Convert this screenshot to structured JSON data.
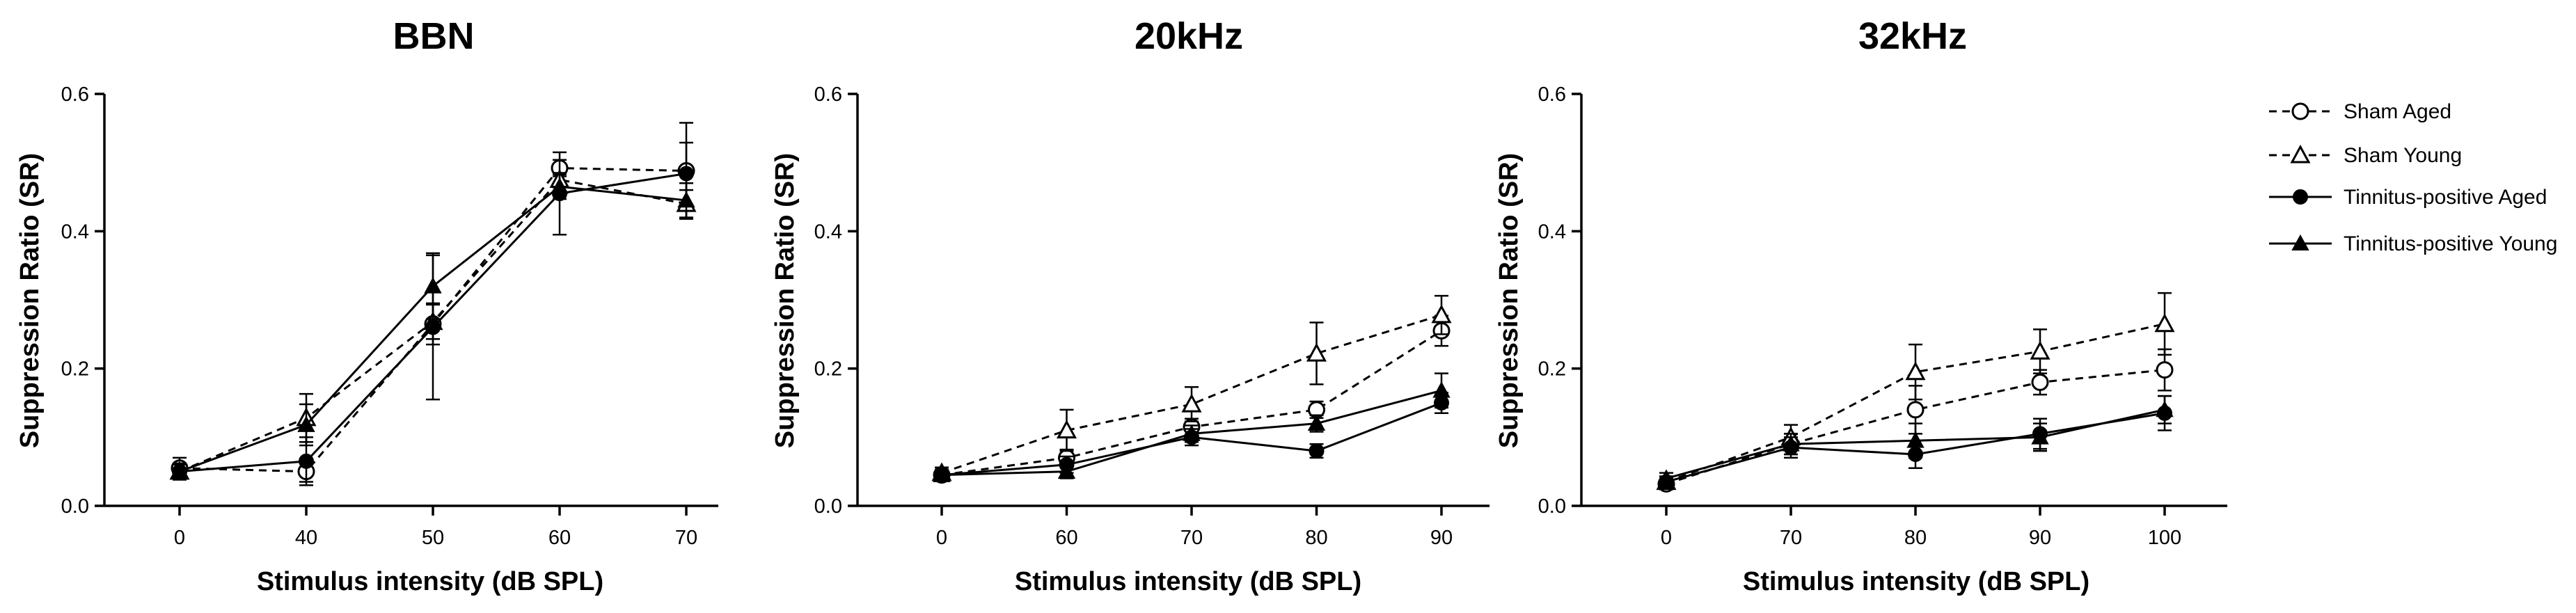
{
  "chart_data": [
    {
      "type": "line",
      "title": "BBN",
      "xlabel": "Stimulus intensity (dB SPL)",
      "ylabel": "Suppression Ratio (SR)",
      "ylim": [
        0,
        0.6
      ],
      "yticks": [
        "0.0",
        "0.2",
        "0.4",
        "0.6"
      ],
      "categories": [
        "0",
        "40",
        "50",
        "60",
        "70"
      ],
      "series": [
        {
          "name": "Sham Aged",
          "values": [
            0.055,
            0.05,
            0.265,
            0.492,
            0.488
          ],
          "errors": [
            0.015,
            0.015,
            0.03,
            0.012,
            0.07
          ]
        },
        {
          "name": "Sham Young",
          "values": [
            0.05,
            0.128,
            0.268,
            0.475,
            0.44
          ],
          "errors": [
            0.01,
            0.035,
            0.025,
            0.01,
            0.02
          ]
        },
        {
          "name": "Tinnitus-positive Aged",
          "values": [
            0.05,
            0.065,
            0.26,
            0.455,
            0.484
          ],
          "errors": [
            0.012,
            0.035,
            0.105,
            0.06,
            0.045
          ]
        },
        {
          "name": "Tinnitus-positive Young",
          "values": [
            0.05,
            0.118,
            0.32,
            0.465,
            0.445
          ],
          "errors": [
            0.01,
            0.03,
            0.048,
            0.018,
            0.025
          ]
        }
      ]
    },
    {
      "type": "line",
      "title": "20kHz",
      "xlabel": "Stimulus intensity (dB SPL)",
      "ylabel": "Suppression Ratio (SR)",
      "ylim": [
        0,
        0.6
      ],
      "yticks": [
        "0.0",
        "0.2",
        "0.4",
        "0.6"
      ],
      "categories": [
        "0",
        "60",
        "70",
        "80",
        "90"
      ],
      "series": [
        {
          "name": "Sham Aged",
          "values": [
            0.045,
            0.07,
            0.115,
            0.14,
            0.255
          ],
          "errors": [
            0.008,
            0.012,
            0.012,
            0.012,
            0.022
          ]
        },
        {
          "name": "Sham Young",
          "values": [
            0.048,
            0.11,
            0.148,
            0.222,
            0.278
          ],
          "errors": [
            0.008,
            0.03,
            0.025,
            0.045,
            0.028
          ]
        },
        {
          "name": "Tinnitus-positive Aged",
          "values": [
            0.045,
            0.06,
            0.1,
            0.08,
            0.15
          ],
          "errors": [
            0.008,
            0.012,
            0.012,
            0.01,
            0.015
          ]
        },
        {
          "name": "Tinnitus-positive Young",
          "values": [
            0.045,
            0.05,
            0.105,
            0.12,
            0.168
          ],
          "errors": [
            0.008,
            0.01,
            0.012,
            0.012,
            0.025
          ]
        }
      ]
    },
    {
      "type": "line",
      "title": "32kHz",
      "xlabel": "Stimulus intensity (dB SPL)",
      "ylabel": "Suppression Ratio (SR)",
      "ylim": [
        0,
        0.6
      ],
      "yticks": [
        "0.0",
        "0.2",
        "0.4",
        "0.6"
      ],
      "categories": [
        "0",
        "70",
        "80",
        "90",
        "100"
      ],
      "series": [
        {
          "name": "Sham Aged",
          "values": [
            0.032,
            0.09,
            0.14,
            0.18,
            0.198
          ],
          "errors": [
            0.008,
            0.015,
            0.035,
            0.018,
            0.03
          ]
        },
        {
          "name": "Sham Young",
          "values": [
            0.035,
            0.1,
            0.195,
            0.225,
            0.265
          ],
          "errors": [
            0.008,
            0.018,
            0.04,
            0.032,
            0.045
          ]
        },
        {
          "name": "Tinnitus-positive Aged",
          "values": [
            0.035,
            0.085,
            0.075,
            0.105,
            0.135
          ],
          "errors": [
            0.008,
            0.015,
            0.02,
            0.022,
            0.025
          ]
        },
        {
          "name": "Tinnitus-positive Young",
          "values": [
            0.04,
            0.09,
            0.095,
            0.1,
            0.14
          ],
          "errors": [
            0.008,
            0.015,
            0.025,
            0.02,
            0.02
          ]
        }
      ]
    }
  ],
  "legend": [
    {
      "name": "Sham Aged"
    },
    {
      "name": "Sham Young"
    },
    {
      "name": "Tinnitus-positive Aged"
    },
    {
      "name": "Tinnitus-positive Young"
    }
  ]
}
